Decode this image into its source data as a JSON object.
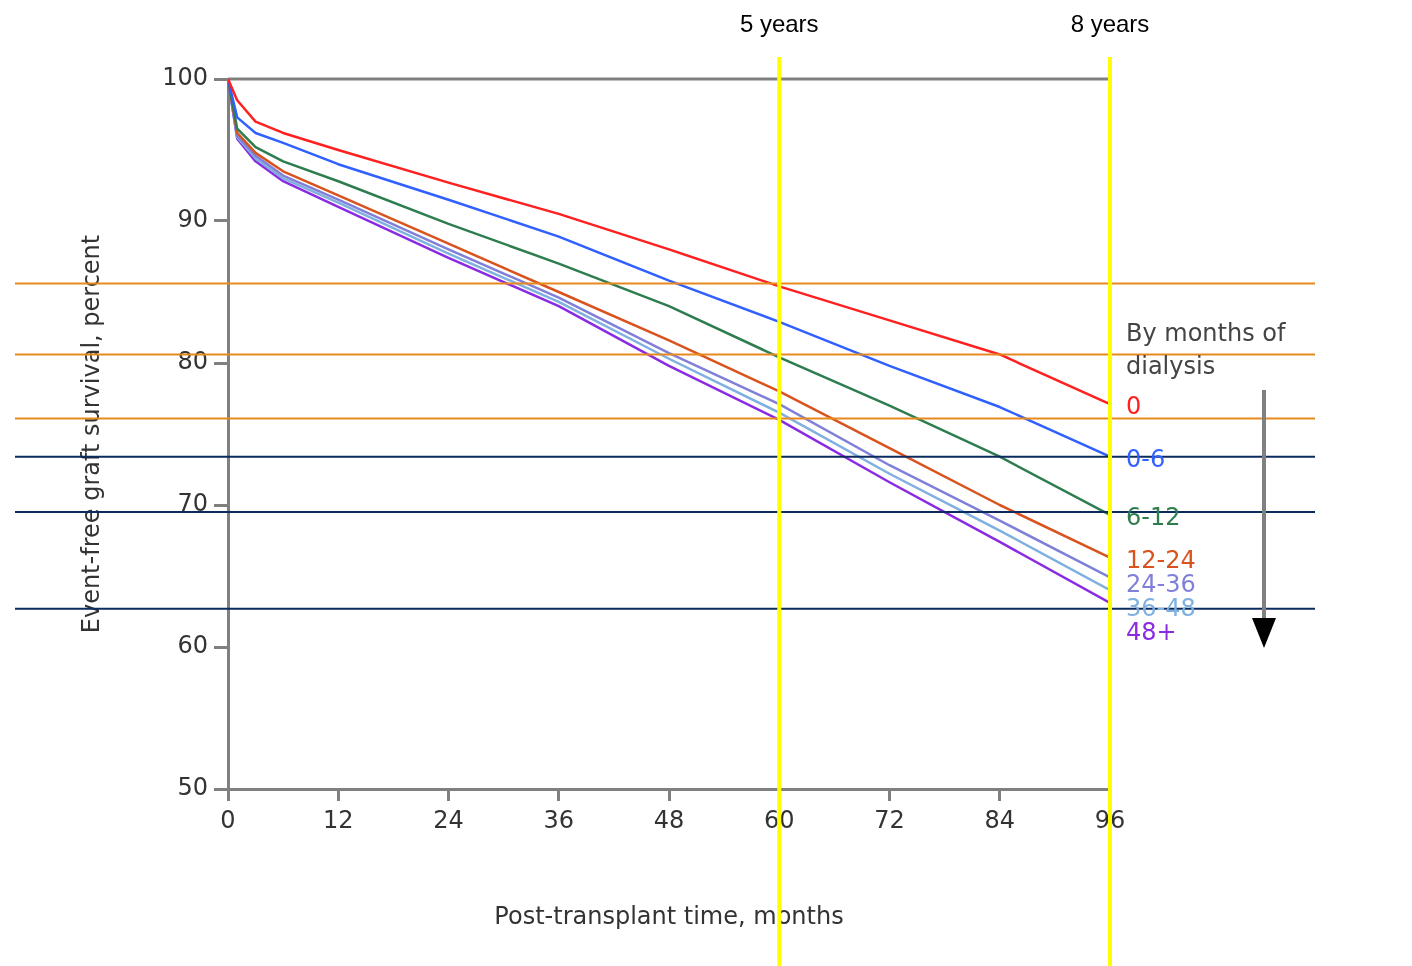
{
  "chart_data": {
    "type": "line",
    "xlabel": "Post-transplant time, months",
    "ylabel": "Event-free graft survival, percent",
    "legend_title": "By months of dialysis",
    "x": [
      0,
      1,
      3,
      6,
      12,
      24,
      36,
      48,
      60,
      72,
      84,
      96
    ],
    "series": [
      {
        "name": "0",
        "color": "#ff2020",
        "values": [
          100,
          98.5,
          97,
          96.2,
          95.0,
          92.7,
          90.5,
          88.0,
          85.4,
          83.0,
          80.6,
          77.1
        ]
      },
      {
        "name": "0-6",
        "color": "#3060ff",
        "values": [
          100,
          97.3,
          96.2,
          95.5,
          94.0,
          91.5,
          88.9,
          85.8,
          82.9,
          79.8,
          76.9,
          73.4
        ]
      },
      {
        "name": "6-12",
        "color": "#2e7d4f",
        "values": [
          100,
          96.5,
          95.2,
          94.2,
          92.8,
          89.8,
          87.0,
          84.0,
          80.4,
          77.0,
          73.4,
          69.3
        ]
      },
      {
        "name": "12-24",
        "color": "#d9531e",
        "values": [
          100,
          96.2,
          94.8,
          93.5,
          91.8,
          88.4,
          85.0,
          81.6,
          78.0,
          74.0,
          70.0,
          66.3
        ]
      },
      {
        "name": "24-36",
        "color": "#8080d8",
        "values": [
          100,
          96.0,
          94.6,
          93.2,
          91.5,
          88.0,
          84.6,
          80.7,
          77.1,
          72.8,
          68.9,
          64.9
        ]
      },
      {
        "name": "36-48",
        "color": "#7fb0e0",
        "values": [
          100,
          95.9,
          94.4,
          93.0,
          91.3,
          87.7,
          84.3,
          80.3,
          76.5,
          72.2,
          68.2,
          64.0
        ]
      },
      {
        "name": "48+",
        "color": "#8a2be2",
        "values": [
          100,
          95.8,
          94.2,
          92.8,
          91.0,
          87.4,
          84.0,
          79.8,
          76.0,
          71.6,
          67.4,
          63.1
        ]
      }
    ],
    "xlim": [
      0,
      96
    ],
    "xticks": [
      0,
      12,
      24,
      36,
      48,
      60,
      72,
      84,
      96
    ],
    "ylim": [
      50,
      100
    ],
    "yticks": [
      50,
      60,
      70,
      80,
      90,
      100
    ],
    "ref_lines": [
      {
        "axis": "y",
        "value": 85.6,
        "color": "#e8891d"
      },
      {
        "axis": "y",
        "value": 80.6,
        "color": "#e8891d"
      },
      {
        "axis": "y",
        "value": 76.1,
        "color": "#e8891d"
      },
      {
        "axis": "y",
        "value": 73.4,
        "color": "#0b2a5e"
      },
      {
        "axis": "y",
        "value": 69.5,
        "color": "#0b2a5e"
      },
      {
        "axis": "y",
        "value": 62.7,
        "color": "#0b2a5e"
      },
      {
        "axis": "x",
        "value": 60,
        "label": "5 years",
        "color": "#ffff00"
      },
      {
        "axis": "x",
        "value": 96,
        "label": "8 years",
        "color": "#ffff00"
      }
    ],
    "grid": false,
    "legend": false,
    "marker": "none",
    "line_style": "solid"
  }
}
